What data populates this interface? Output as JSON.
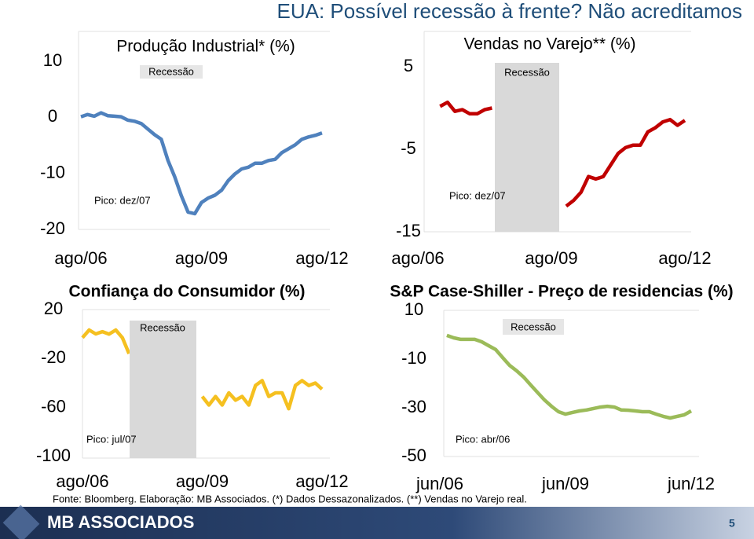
{
  "title": "EUA: Possível recessão à frente? Não acreditamos",
  "source": "Fonte: Bloomberg. Elaboração: MB Associados. (*) Dados Dessazonalizados. (**) Vendas no Varejo real.",
  "brand": "MB ASSOCIADOS",
  "page_number": "5",
  "chart_data": [
    {
      "type": "line",
      "title": "Produção Industrial* (%)",
      "color": "#4f81bd",
      "categories": [
        "ago/06",
        null,
        null,
        null,
        null,
        null,
        null,
        null,
        null,
        null,
        null,
        null,
        null,
        null,
        null,
        null,
        null,
        null,
        "ago/09",
        null,
        null,
        null,
        null,
        null,
        null,
        null,
        null,
        null,
        null,
        null,
        null,
        null,
        null,
        null,
        null,
        null,
        "ago/12"
      ],
      "values": [
        0.1,
        0.5,
        0.2,
        0.8,
        0.3,
        0.2,
        0.1,
        -0.5,
        -0.7,
        -1.1,
        -2.1,
        -3.1,
        -3.9,
        -7.7,
        -10.6,
        -14,
        -16.9,
        -17.2,
        -15.2,
        -14.4,
        -13.9,
        -13,
        -11.3,
        -10.1,
        -9.2,
        -8.9,
        -8.2,
        -8.2,
        -7.7,
        -7.5,
        -6.3,
        -5.6,
        -4.9,
        -3.9,
        -3.5,
        -3.2,
        -2.8
      ],
      "ylim": [
        -20,
        10
      ],
      "yticks": [
        10,
        0,
        -10,
        -20
      ],
      "grid": false,
      "recession_label": "Recessão",
      "peak_label": "Pico: dez/07"
    },
    {
      "type": "line",
      "title": "Vendas no Varejo** (%)",
      "color": "#c00000",
      "categories": [
        "ago/06",
        null,
        null,
        null,
        null,
        null,
        null,
        null,
        null,
        null,
        null,
        null,
        null,
        null,
        null,
        null,
        null,
        null,
        "ago/09",
        null,
        null,
        null,
        null,
        null,
        null,
        null,
        null,
        null,
        null,
        null,
        null,
        null,
        null,
        null,
        null,
        null,
        "ago/12"
      ],
      "values": [
        null,
        null,
        null,
        0.2,
        0.7,
        -0.4,
        -0.2,
        -0.7,
        -0.7,
        -0.2,
        0,
        null,
        null,
        null,
        null,
        null,
        null,
        null,
        null,
        null,
        -11.9,
        -11.2,
        -10.2,
        -8.3,
        -8.6,
        -8.3,
        -6.9,
        -5.5,
        -4.8,
        -4.5,
        -4.5,
        -2.9,
        -2.4,
        -1.7,
        -1.4,
        -2.1,
        -1.5
      ],
      "ylim": [
        -15,
        5
      ],
      "yticks": [
        5,
        -5,
        -15
      ],
      "grid": false,
      "recession_label": "Recessão",
      "peak_label": "Pico: dez/07"
    },
    {
      "type": "line",
      "title": "Confiança do Consumidor (%)",
      "color": "#f5c020",
      "categories": [
        "ago/06",
        null,
        null,
        null,
        null,
        null,
        null,
        null,
        null,
        null,
        null,
        null,
        null,
        null,
        null,
        null,
        null,
        null,
        "ago/09",
        null,
        null,
        null,
        null,
        null,
        null,
        null,
        null,
        null,
        null,
        null,
        null,
        null,
        null,
        null,
        null,
        null,
        "ago/12"
      ],
      "values": [
        -3,
        3.3,
        0.1,
        2,
        0,
        3.3,
        -3,
        -16,
        null,
        null,
        null,
        null,
        null,
        null,
        null,
        null,
        null,
        null,
        -51,
        -58,
        -51,
        -58,
        -48,
        -54,
        -51,
        -58,
        -42,
        -38,
        -51,
        -48,
        -48,
        -61,
        -42,
        -38,
        -42,
        -40,
        -45
      ],
      "ylim": [
        -100,
        20
      ],
      "yticks": [
        20,
        -20,
        -60,
        -100
      ],
      "grid": false,
      "recession_label": "Recessão",
      "peak_label": "Pico: jul/07"
    },
    {
      "type": "line",
      "title": "S&P Case-Shiller - Preço de residencias (%)",
      "color": "#9bbb59",
      "categories": [
        "jun/06",
        null,
        null,
        null,
        null,
        null,
        null,
        null,
        null,
        null,
        null,
        null,
        null,
        null,
        null,
        null,
        null,
        null,
        "jun/09",
        null,
        null,
        null,
        null,
        null,
        null,
        null,
        null,
        null,
        null,
        null,
        null,
        null,
        null,
        null,
        null,
        null,
        "jun/12"
      ],
      "values": [
        null,
        -0.3,
        -1.3,
        -1.9,
        -1.9,
        -1.9,
        -2.9,
        -4.5,
        -6.1,
        -9.4,
        -12.6,
        -14.8,
        -17.4,
        -20.6,
        -23.7,
        -26.8,
        -29.4,
        -31.6,
        -32.6,
        -31.9,
        -31.3,
        -30.9,
        -30.3,
        -29.7,
        -29.4,
        -29.7,
        -30.9,
        -31,
        -31.3,
        -31.6,
        -31.6,
        -32.6,
        -33.5,
        -34.2,
        -33.5,
        -32.9,
        -31.3
      ],
      "ylim": [
        -50,
        10
      ],
      "yticks": [
        10,
        -10,
        -30,
        -50
      ],
      "grid": false,
      "recession_label": "Recessão",
      "peak_label": "Pico: abr/06"
    }
  ]
}
